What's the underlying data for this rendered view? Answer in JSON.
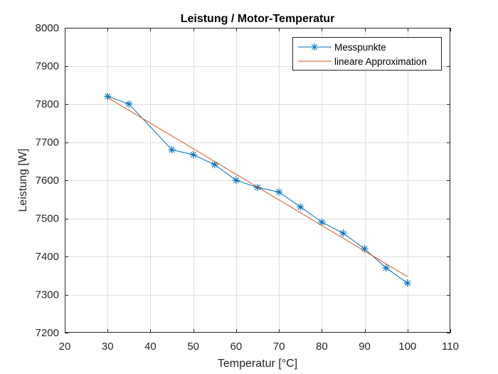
{
  "chart_data": {
    "type": "line",
    "title": "Leistung / Motor-Temperatur",
    "xlabel": "Temperatur [°C]",
    "ylabel": "Leistung [W]",
    "xlim": [
      20,
      110
    ],
    "ylim": [
      7200,
      8000
    ],
    "xticks": [
      20,
      30,
      40,
      50,
      60,
      70,
      80,
      90,
      100,
      110
    ],
    "yticks": [
      7200,
      7300,
      7400,
      7500,
      7600,
      7700,
      7800,
      7900,
      8000
    ],
    "grid": true,
    "legend_position": "top-right",
    "series": [
      {
        "name": "Messpunkte",
        "color": "#0072BD",
        "marker": "asterisk",
        "x": [
          30,
          35,
          45,
          50,
          55,
          60,
          65,
          70,
          75,
          80,
          85,
          90,
          95,
          100
        ],
        "y": [
          7820,
          7800,
          7680,
          7667,
          7641,
          7600,
          7581,
          7569,
          7530,
          7490,
          7461,
          7420,
          7370,
          7330
        ]
      },
      {
        "name": "lineare Approximation",
        "color": "#D95319",
        "marker": "none",
        "x": [
          30,
          100
        ],
        "y": [
          7817,
          7347
        ]
      }
    ]
  }
}
